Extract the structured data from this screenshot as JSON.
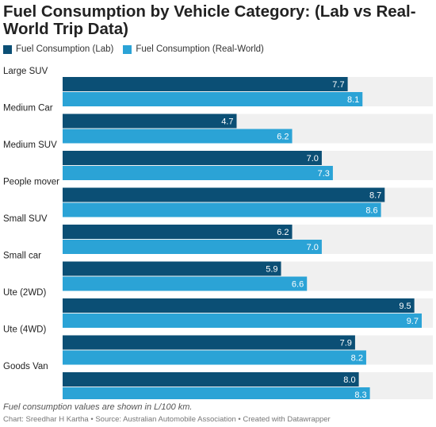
{
  "chart_data": {
    "type": "bar",
    "orientation": "horizontal",
    "title": "Fuel Consumption by Vehicle Category: (Lab vs Real-World Trip Data)",
    "categories": [
      "Large SUV",
      "Medium Car",
      "Medium SUV",
      "People mover",
      "Small SUV",
      "Small car",
      "Ute (2WD)",
      "Ute (4WD)",
      "Goods Van"
    ],
    "series": [
      {
        "name": "Fuel Consumption (Lab)",
        "color": "#0b4f75",
        "values": [
          7.7,
          4.7,
          7.0,
          8.7,
          6.2,
          5.9,
          9.5,
          7.9,
          8.0
        ]
      },
      {
        "name": "Fuel Consumption (Real-World)",
        "color": "#2ba3d6",
        "values": [
          8.1,
          6.2,
          7.3,
          8.6,
          7.0,
          6.6,
          9.7,
          8.2,
          8.3
        ]
      }
    ],
    "xlim": [
      0,
      10
    ],
    "legend_position": "top-left",
    "background_band_color": "#f0f0f0",
    "label_color": "#ffffff"
  },
  "note": "Fuel consumption values are shown in L/100 km.",
  "credit": "Chart: Sreedhar H Kartha • Source: Australian Automobile Association • Created with Datawrapper"
}
